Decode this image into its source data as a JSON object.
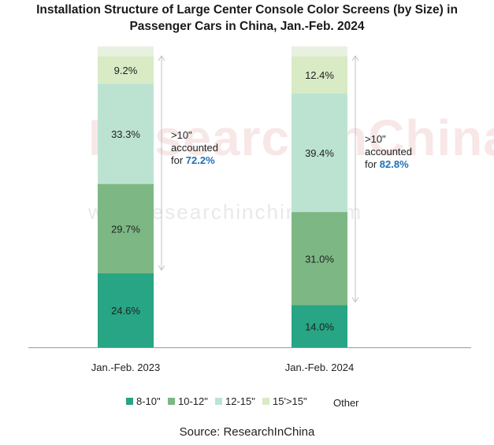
{
  "title_line1": "Installation Structure of Large Center Console Color Screens (by Size) in",
  "title_line2": "Passenger Cars in China, Jan.-Feb. 2024",
  "watermark_big": "ResearchInChina",
  "watermark_url": "www.researchinchina.com",
  "source": "Source: ResearchInChina",
  "colors": {
    "s8_10": "#27a584",
    "s10_12": "#7db884",
    "s12_15": "#bce3d2",
    "s15plus": "#d8ebc5",
    "other": "#e8f1e0",
    "axis": "#999999",
    "callout_value": "#1f6fb5",
    "arrow": "#c0c0c0"
  },
  "chart_data": {
    "type": "bar",
    "stacked": true,
    "categories": [
      "Jan.-Feb. 2023",
      "Jan.-Feb. 2024"
    ],
    "series": [
      {
        "name": "8-10\"",
        "values": [
          24.6,
          14.0
        ],
        "labels": [
          "24.6%",
          "14.0%"
        ],
        "color_key": "s8_10"
      },
      {
        "name": "10-12\"",
        "values": [
          29.7,
          31.0
        ],
        "labels": [
          "29.7%",
          "31.0%"
        ],
        "color_key": "s10_12"
      },
      {
        "name": "12-15\"",
        "values": [
          33.3,
          39.4
        ],
        "labels": [
          "33.3%",
          "39.4%"
        ],
        "color_key": "s12_15"
      },
      {
        "name": "15'>15\"",
        "values": [
          9.2,
          12.4
        ],
        "labels": [
          "9.2%",
          "12.4%"
        ],
        "color_key": "s15plus"
      },
      {
        "name": "Other",
        "values": [
          3.2,
          3.2
        ],
        "labels": [
          "",
          ""
        ],
        "color_key": "other"
      }
    ],
    "ylim": [
      0,
      100
    ],
    "annotations": [
      {
        "category": "Jan.-Feb. 2023",
        "line1": ">10\"",
        "line2": "accounted",
        "prefix": "for ",
        "value": "72.2%",
        "span": [
          24.6,
          100
        ]
      },
      {
        "category": "Jan.-Feb. 2024",
        "line1": ">10\"",
        "line2": "accounted",
        "prefix": "for ",
        "value": "82.8%",
        "span": [
          14.0,
          100
        ]
      }
    ],
    "legend_position": "bottom"
  }
}
